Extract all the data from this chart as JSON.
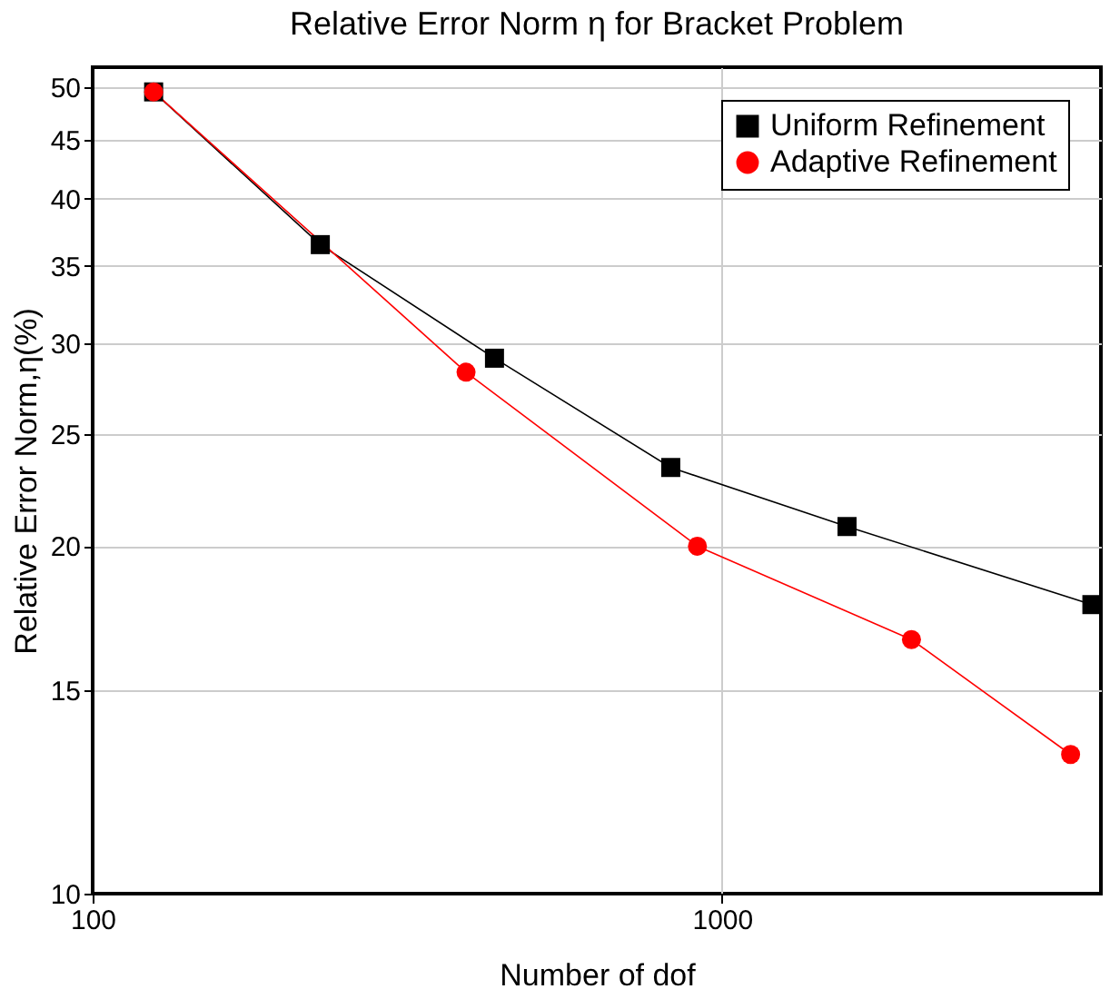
{
  "chart_data": {
    "type": "line",
    "title": "Relative Error Norm  η for Bracket Problem",
    "xlabel": "Number of dof",
    "ylabel": "Relative Error Norm,η(%)",
    "log": "xy",
    "xlim": [
      100,
      4000
    ],
    "xticks": [
      100,
      1000
    ],
    "ylim": [
      10,
      52
    ],
    "yticks": [
      10,
      15,
      20,
      25,
      30,
      35,
      40,
      45,
      50
    ],
    "grid": true,
    "legend": "top right",
    "series": [
      {
        "name": "Uniform Refinement",
        "color": "#000000",
        "marker": "square",
        "x": [
          125,
          230,
          435,
          829,
          1580,
          3870
        ],
        "values": [
          49.5,
          36.5,
          29.1,
          23.4,
          20.8,
          17.8
        ]
      },
      {
        "name": "Adaptive Refinement",
        "color": "#ff0000",
        "marker": "circle",
        "x": [
          125,
          392,
          914,
          2000,
          3580
        ],
        "values": [
          49.5,
          28.3,
          20.0,
          16.6,
          13.2
        ]
      }
    ]
  }
}
